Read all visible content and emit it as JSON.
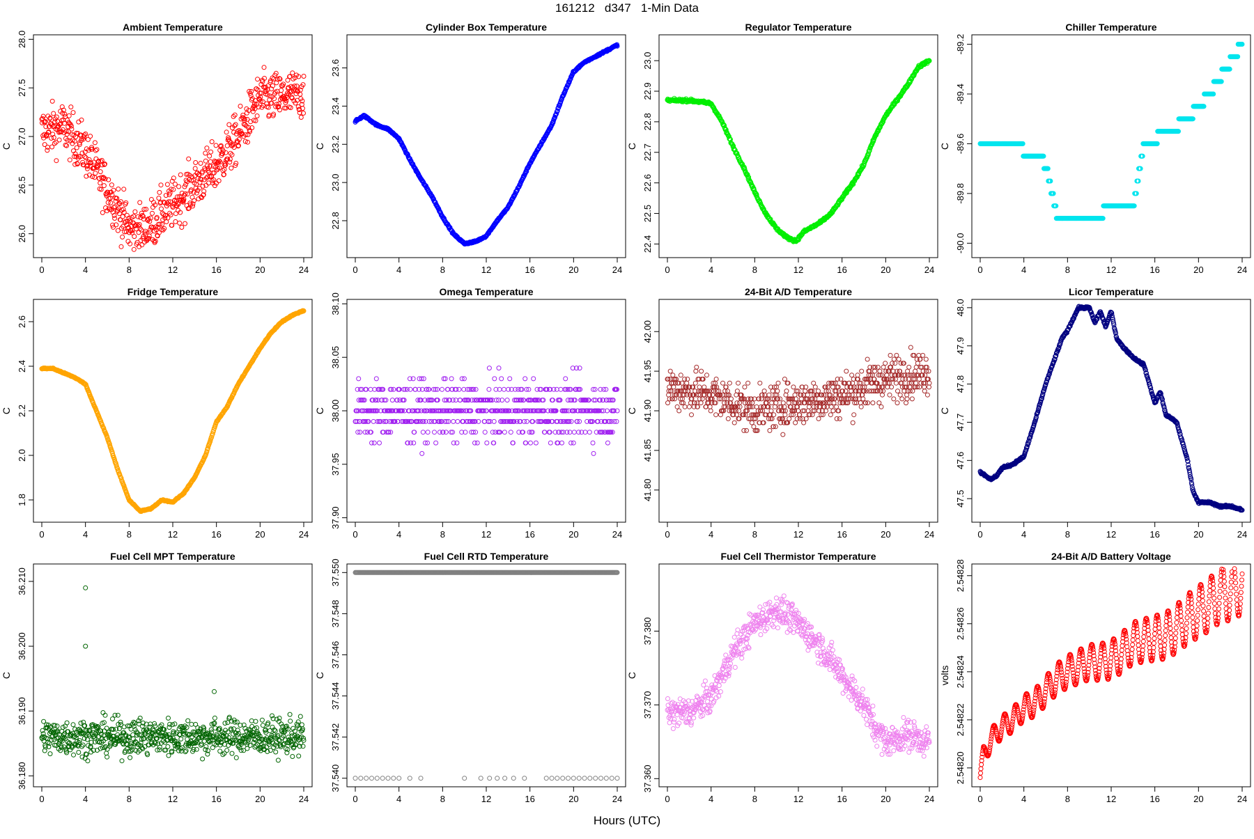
{
  "page": {
    "title": "161212   d347   1-Min Data",
    "xlabel": "Hours (UTC)"
  },
  "chart_data": [
    {
      "type": "scatter",
      "title": "Ambient Temperature",
      "xlabel": "Hours (UTC)",
      "ylabel": "C",
      "xlim": [
        0,
        24
      ],
      "ylim": [
        25.8,
        28.0
      ],
      "xticks": [
        "0",
        "4",
        "8",
        "12",
        "16",
        "20",
        "24"
      ],
      "yticks": [
        "26.0",
        "26.5",
        "27.0",
        "27.5",
        "28.0"
      ],
      "color": "#ff0000",
      "series": [
        {
          "name": "Ambient Temperature",
          "x": [
            0,
            2,
            4,
            6,
            8,
            9.5,
            11,
            13,
            16,
            18,
            20,
            22,
            24
          ],
          "y": [
            27.05,
            27.1,
            26.85,
            26.45,
            26.05,
            26.05,
            26.2,
            26.4,
            26.7,
            27.0,
            27.4,
            27.4,
            27.45
          ]
        }
      ],
      "noise": 0.55
    },
    {
      "type": "scatter",
      "title": "Cylinder Box Temperature",
      "xlabel": "Hours (UTC)",
      "ylabel": "C",
      "xlim": [
        0,
        24
      ],
      "ylim": [
        22.63,
        23.75
      ],
      "xticks": [
        "0",
        "4",
        "8",
        "12",
        "16",
        "20",
        "24"
      ],
      "yticks": [
        "22.8",
        "23.0",
        "23.2",
        "23.4",
        "23.6"
      ],
      "color": "#0000ff",
      "series": [
        {
          "name": "Cylinder Box Temperature",
          "x": [
            0,
            0.8,
            2,
            3,
            4,
            5,
            6,
            7,
            8,
            9,
            10,
            11,
            12,
            13,
            14,
            15,
            16,
            17,
            18,
            19,
            20,
            21,
            22,
            23,
            24
          ],
          "y": [
            23.32,
            23.35,
            23.3,
            23.28,
            23.23,
            23.12,
            23.02,
            22.93,
            22.82,
            22.73,
            22.68,
            22.69,
            22.72,
            22.8,
            22.87,
            22.98,
            23.1,
            23.2,
            23.3,
            23.45,
            23.58,
            23.63,
            23.66,
            23.69,
            23.72
          ]
        }
      ],
      "noise": 0.01
    },
    {
      "type": "scatter",
      "title": "Regulator Temperature",
      "xlabel": "Hours (UTC)",
      "ylabel": "C",
      "xlim": [
        0,
        24
      ],
      "ylim": [
        22.37,
        23.07
      ],
      "xticks": [
        "0",
        "4",
        "8",
        "12",
        "16",
        "20",
        "24"
      ],
      "yticks": [
        "22.4",
        "22.5",
        "22.6",
        "22.7",
        "22.8",
        "22.9",
        "23.0"
      ],
      "color": "#00ee00",
      "series": [
        {
          "name": "Regulator Temperature",
          "x": [
            0,
            2,
            4,
            5,
            6,
            7,
            8,
            9,
            10,
            11,
            11.8,
            12.5,
            13,
            14,
            15,
            16,
            17,
            18,
            19,
            20,
            21,
            22,
            23,
            24
          ],
          "y": [
            22.87,
            22.87,
            22.86,
            22.8,
            22.72,
            22.65,
            22.57,
            22.5,
            22.45,
            22.42,
            22.41,
            22.44,
            22.45,
            22.47,
            22.5,
            22.55,
            22.6,
            22.66,
            22.75,
            22.82,
            22.87,
            22.92,
            22.98,
            23.0
          ]
        }
      ],
      "noise": 0.01
    },
    {
      "type": "scatter",
      "title": "Chiller Temperature",
      "xlabel": "Hours (UTC)",
      "ylabel": "C",
      "xlim": [
        0,
        24
      ],
      "ylim": [
        -90.04,
        -89.18
      ],
      "xticks": [
        "0",
        "4",
        "8",
        "12",
        "16",
        "20",
        "24"
      ],
      "yticks": [
        "-90.0",
        "-89.8",
        "-89.6",
        "-89.4",
        "-89.2"
      ],
      "color": "#00e5ee",
      "series": [
        {
          "name": "Chiller Temperature",
          "x": [
            0,
            3,
            6,
            7,
            9,
            12,
            14,
            15,
            17,
            19,
            21,
            22.5,
            24
          ],
          "y": [
            -89.6,
            -89.6,
            -89.68,
            -89.88,
            -89.92,
            -89.86,
            -89.86,
            -89.6,
            -89.56,
            -89.5,
            -89.4,
            -89.3,
            -89.2
          ]
        }
      ],
      "noise": 0.0,
      "quantize": 0.05
    },
    {
      "type": "scatter",
      "title": "Fridge Temperature",
      "xlabel": "Hours (UTC)",
      "ylabel": "C",
      "xlim": [
        0,
        24
      ],
      "ylim": [
        1.72,
        2.68
      ],
      "xticks": [
        "0",
        "4",
        "8",
        "12",
        "16",
        "20",
        "24"
      ],
      "yticks": [
        "1.8",
        "2.0",
        "2.2",
        "2.4",
        "2.6"
      ],
      "color": "#ffa500",
      "series": [
        {
          "name": "Fridge Temperature",
          "x": [
            0,
            1,
            2,
            3,
            4,
            5,
            6,
            7,
            8,
            9,
            10,
            11,
            12,
            13,
            14,
            15,
            16,
            17,
            18,
            19,
            20,
            21,
            22,
            23,
            24
          ],
          "y": [
            2.39,
            2.39,
            2.37,
            2.35,
            2.32,
            2.2,
            2.08,
            1.93,
            1.8,
            1.75,
            1.76,
            1.8,
            1.79,
            1.83,
            1.9,
            2.0,
            2.15,
            2.22,
            2.32,
            2.4,
            2.48,
            2.55,
            2.6,
            2.63,
            2.65
          ]
        }
      ],
      "noise": 0.006
    },
    {
      "type": "scatter",
      "title": "Omega Temperature",
      "xlabel": "Hours (UTC)",
      "ylabel": "C",
      "xlim": [
        0,
        24
      ],
      "ylim": [
        37.9,
        38.1
      ],
      "xticks": [
        "0",
        "4",
        "8",
        "12",
        "16",
        "20",
        "24"
      ],
      "yticks": [
        "37.90",
        "37.95",
        "38.00",
        "38.05",
        "38.10"
      ],
      "color": "#a020f0",
      "series": [
        {
          "name": "Omega Temperature",
          "x": [
            0,
            24
          ],
          "y": [
            38.0,
            38.0
          ]
        }
      ],
      "noise": 0.06,
      "quantize": 0.01
    },
    {
      "type": "scatter",
      "title": "24-Bit A/D Temperature",
      "xlabel": "Hours (UTC)",
      "ylabel": "C",
      "xlim": [
        0,
        24
      ],
      "ylim": [
        41.765,
        42.035
      ],
      "xticks": [
        "0",
        "4",
        "8",
        "12",
        "16",
        "20",
        "24"
      ],
      "yticks": [
        "41.80",
        "41.85",
        "41.90",
        "41.95",
        "42.00"
      ],
      "color": "#a52a2a",
      "series": [
        {
          "name": "24-Bit A/D Temperature",
          "x": [
            0,
            4,
            8,
            12,
            16,
            20,
            24
          ],
          "y": [
            41.93,
            41.92,
            41.9,
            41.91,
            41.92,
            41.94,
            41.95
          ]
        }
      ],
      "noise": 0.06,
      "quantize": 0.005
    },
    {
      "type": "scatter",
      "title": "Licor Temperature",
      "xlabel": "Hours (UTC)",
      "ylabel": "C",
      "xlim": [
        0,
        24
      ],
      "ylim": [
        47.45,
        48.01
      ],
      "xticks": [
        "0",
        "4",
        "8",
        "12",
        "16",
        "20",
        "24"
      ],
      "yticks": [
        "47.5",
        "47.6",
        "47.7",
        "47.8",
        "47.9",
        "48.0"
      ],
      "color": "#000080",
      "series": [
        {
          "name": "Licor Temperature",
          "x": [
            0,
            0.5,
            1,
            1.5,
            2,
            3,
            4,
            5,
            5.5,
            6,
            6.5,
            7,
            7.5,
            8,
            8.5,
            9,
            10,
            10.5,
            11,
            11.5,
            12,
            12.5,
            13,
            14,
            15,
            16,
            16.5,
            17,
            18,
            18.5,
            19,
            19.5,
            20,
            21,
            22,
            23,
            24
          ],
          "y": [
            47.57,
            47.56,
            47.55,
            47.56,
            47.58,
            47.59,
            47.61,
            47.7,
            47.75,
            47.8,
            47.84,
            47.88,
            47.92,
            47.94,
            47.97,
            48.0,
            48.0,
            47.96,
            47.99,
            47.95,
            47.99,
            47.92,
            47.9,
            47.87,
            47.85,
            47.75,
            47.78,
            47.72,
            47.7,
            47.65,
            47.6,
            47.52,
            47.49,
            47.49,
            47.48,
            47.48,
            47.47
          ]
        }
      ],
      "noise": 0.006
    },
    {
      "type": "scatter",
      "title": "Fuel Cell MPT Temperature",
      "xlabel": "Hours (UTC)",
      "ylabel": "C",
      "xlim": [
        0,
        24
      ],
      "ylim": [
        36.179,
        36.212
      ],
      "xticks": [
        "0",
        "4",
        "8",
        "12",
        "16",
        "20",
        "24"
      ],
      "yticks": [
        "36.180",
        "36.190",
        "36.200",
        "36.210"
      ],
      "color": "#006400",
      "series": [
        {
          "name": "Fuel Cell MPT Temperature",
          "x": [
            0,
            24
          ],
          "y": [
            36.186,
            36.186
          ]
        }
      ],
      "noise": 0.006,
      "outliers": [
        [
          4.0,
          36.209
        ],
        [
          4.0,
          36.2
        ],
        [
          15.8,
          36.193
        ]
      ]
    },
    {
      "type": "scatter",
      "title": "Fuel Cell RTD Temperature",
      "xlabel": "Hours (UTC)",
      "ylabel": "C",
      "xlim": [
        0,
        24
      ],
      "ylim": [
        37.5398,
        37.5502
      ],
      "xticks": [
        "0",
        "4",
        "8",
        "12",
        "16",
        "20",
        "24"
      ],
      "yticks": [
        "37.540",
        "37.542",
        "37.544",
        "37.546",
        "37.548",
        "37.550"
      ],
      "color": "#808080",
      "series": [
        {
          "name": "Fuel Cell RTD Temperature 37.550",
          "x": [
            0,
            24
          ],
          "y": [
            37.55,
            37.55
          ]
        },
        {
          "name": "Fuel Cell RTD Temperature 37.540",
          "x": [
            0.0,
            0.5,
            1.0,
            1.5,
            2.0,
            2.5,
            3.0,
            3.5,
            4.0,
            5.0,
            6.0,
            10.0,
            11.5,
            12.3,
            13.0,
            13.7,
            14.5,
            15.5,
            17.5,
            18.0,
            18.5,
            19.0,
            19.5,
            20.0,
            20.5,
            21.0,
            21.5,
            22.0,
            22.5,
            23.0,
            23.5,
            24.0
          ],
          "y": [
            37.54,
            37.54,
            37.54,
            37.54,
            37.54,
            37.54,
            37.54,
            37.54,
            37.54,
            37.54,
            37.54,
            37.54,
            37.54,
            37.54,
            37.54,
            37.54,
            37.54,
            37.54,
            37.54,
            37.54,
            37.54,
            37.54,
            37.54,
            37.54,
            37.54,
            37.54,
            37.54,
            37.54,
            37.54,
            37.54,
            37.54,
            37.54
          ]
        }
      ],
      "noise": 0.0
    },
    {
      "type": "scatter",
      "title": "Fuel Cell Thermistor Temperature",
      "xlabel": "Hours (UTC)",
      "ylabel": "C",
      "xlim": [
        0,
        24
      ],
      "ylim": [
        37.3595,
        37.3885
      ],
      "xticks": [
        "0",
        "4",
        "8",
        "12",
        "16",
        "20",
        "24"
      ],
      "yticks": [
        "37.360",
        "37.370",
        "37.380"
      ],
      "color": "#ee82ee",
      "series": [
        {
          "name": "Fuel Cell Thermistor Temperature",
          "x": [
            0,
            2,
            4,
            6,
            8,
            10,
            12,
            14,
            16,
            18,
            19,
            20,
            22,
            24
          ],
          "y": [
            37.369,
            37.369,
            37.371,
            37.377,
            37.381,
            37.383,
            37.381,
            37.378,
            37.374,
            37.37,
            37.367,
            37.365,
            37.366,
            37.365
          ]
        }
      ],
      "noise": 0.0045
    },
    {
      "type": "scatter",
      "title": "24-Bit A/D Battery Voltage",
      "xlabel": "Hours (UTC)",
      "ylabel": "volts",
      "xlim": [
        0,
        24
      ],
      "ylim": [
        2.548194,
        2.548283
      ],
      "xticks": [
        "0",
        "4",
        "8",
        "12",
        "16",
        "20",
        "24"
      ],
      "yticks": [
        "2.54820",
        "2.54822",
        "2.54824",
        "2.54826",
        "2.54828"
      ],
      "color": "#ff0000",
      "series": [
        {
          "name": "24-Bit A/D Battery Voltage",
          "x": [
            0,
            0.3,
            1,
            2,
            3,
            4,
            5,
            6,
            7,
            8,
            9,
            10,
            11,
            12,
            13,
            14,
            15,
            16,
            17,
            18,
            19,
            20,
            21,
            22,
            23,
            24
          ],
          "y": [
            2.548196,
            2.548205,
            2.548212,
            2.548217,
            2.54822,
            2.548225,
            2.548227,
            2.548232,
            2.548237,
            2.54824,
            2.548242,
            2.548244,
            2.548244,
            2.548245,
            2.548248,
            2.548252,
            2.548253,
            2.548254,
            2.548255,
            2.548258,
            2.548262,
            2.548265,
            2.548268,
            2.548272,
            2.548273,
            2.548276
          ]
        }
      ],
      "noise": 0.0,
      "oscillation": 8e-06
    }
  ]
}
